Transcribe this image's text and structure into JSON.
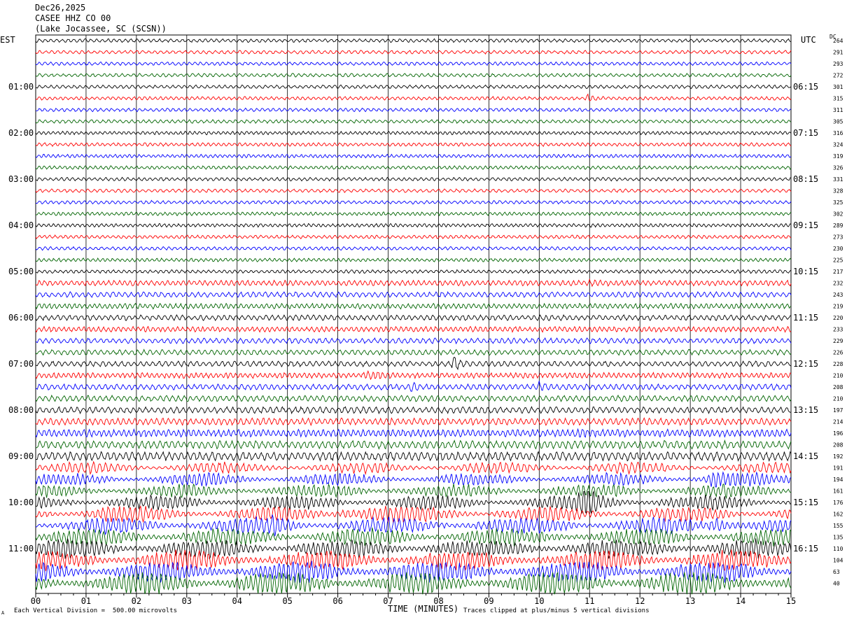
{
  "header": {
    "date": "Dec26,2025",
    "station": "CASEE HHZ CO 00",
    "location": "(Lake Jocassee, SC (SCSN))"
  },
  "labels": {
    "left_tz": "EST",
    "right_tz": "UTC",
    "dc": "DC",
    "xlabel": "TIME (MINUTES)",
    "scale_note": "Each Vertical Division =  500.00 microvolts",
    "clip_note": "Traces clipped at plus/minus 5 vertical divisions",
    "corner_mark": "A"
  },
  "chart_data": {
    "type": "line",
    "title": "CASEE HHZ CO 00 (Lake Jocassee, SC (SCSN))",
    "xlabel": "TIME (MINUTES)",
    "xlim": [
      0,
      15
    ],
    "x_ticks": [
      "00",
      "01",
      "02",
      "03",
      "04",
      "05",
      "06",
      "07",
      "08",
      "09",
      "10",
      "11",
      "12",
      "13",
      "14",
      "15"
    ],
    "left_hour_labels": [
      "01:00",
      "02:00",
      "03:00",
      "04:00",
      "05:00",
      "06:00",
      "07:00",
      "08:00",
      "09:00",
      "10:00",
      "11:00"
    ],
    "right_hour_labels": [
      "06:15",
      "07:15",
      "08:15",
      "09:15",
      "10:15",
      "11:15",
      "12:15",
      "13:15",
      "14:15",
      "15:15",
      "16:15"
    ],
    "dc_offsets": [
      264,
      291,
      293,
      272,
      301,
      315,
      311,
      305,
      316,
      324,
      319,
      326,
      331,
      328,
      325,
      302,
      289,
      273,
      230,
      225,
      217,
      232,
      243,
      219,
      220,
      233,
      229,
      226,
      228,
      210,
      208,
      210,
      197,
      214,
      196,
      208,
      192,
      191,
      194,
      161,
      176,
      162,
      155,
      135,
      110,
      104,
      63,
      40
    ],
    "trace_colors": [
      "#000000",
      "#ff0000",
      "#0000ff",
      "#006400"
    ],
    "grid": true
  }
}
